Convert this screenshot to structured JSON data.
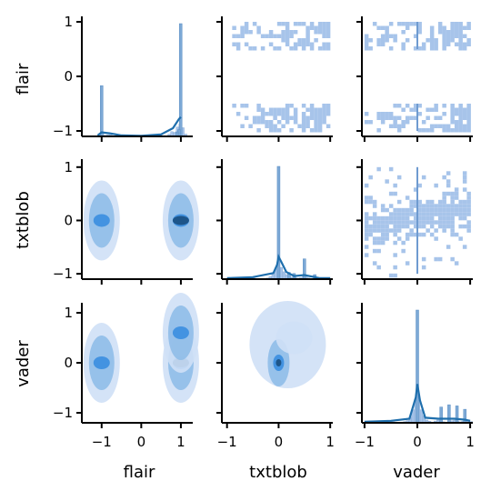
{
  "chart_data": {
    "type": "pairplot",
    "variables": [
      "flair",
      "txtblob",
      "vader"
    ],
    "axis_labels": {
      "x": [
        "flair",
        "txtblob",
        "vader"
      ],
      "y": [
        "flair",
        "txtblob",
        "vader"
      ]
    },
    "x_ticks": [
      {
        "values": [
          -1,
          0,
          1
        ],
        "labels": [
          "−1",
          "0",
          "1"
        ],
        "range": [
          -1.5,
          1.3
        ]
      },
      {
        "values": [
          -1,
          0,
          1
        ],
        "labels": [
          "−1",
          "0",
          "1"
        ],
        "range": [
          -1.1,
          1.05
        ]
      },
      {
        "values": [
          -1,
          0,
          1
        ],
        "labels": [
          "−1",
          "0",
          "1"
        ],
        "range": [
          -1.05,
          1.05
        ]
      }
    ],
    "y_ticks": [
      {
        "values": [
          -1,
          0,
          1
        ],
        "labels": [
          "−1",
          "0",
          "1"
        ],
        "range": [
          -1.1,
          1.1
        ]
      },
      {
        "values": [
          -1,
          0,
          1
        ],
        "labels": [
          "−1",
          "0",
          "1"
        ],
        "range": [
          -1.1,
          1.15
        ]
      },
      {
        "values": [
          -1,
          0,
          1
        ],
        "labels": [
          "−1",
          "0",
          "1"
        ],
        "range": [
          -1.2,
          1.2
        ]
      }
    ],
    "colors": {
      "hist_fill": "#a7c4ea",
      "kde_line": "#1f6fad",
      "kde_fill_light": "#cfe0f6",
      "kde_fill_mid": "#8fbde8",
      "kde_fill_dark": "#3a8ee0",
      "kde_core": "#1a4f80",
      "axis": "#000000",
      "background": "#ffffff"
    },
    "diagonal": [
      {
        "variable": "flair",
        "type": "hist+kde",
        "spikes": [
          {
            "x": -1.0,
            "height": 0.45
          },
          {
            "x": 0.995,
            "height": 1.0
          },
          {
            "x": 0.95,
            "height": 0.06
          },
          {
            "x": 0.9,
            "height": 0.04
          }
        ],
        "kde": [
          [
            -1.1,
            0.01
          ],
          [
            -1.0,
            0.04
          ],
          [
            -0.8,
            0.03
          ],
          [
            -0.5,
            0.01
          ],
          [
            0.0,
            0.005
          ],
          [
            0.5,
            0.02
          ],
          [
            0.8,
            0.08
          ],
          [
            0.95,
            0.17
          ],
          [
            1.0,
            0.19
          ]
        ]
      },
      {
        "variable": "txtblob",
        "type": "hist+kde",
        "spikes": [
          {
            "x": 0.0,
            "height": 1.0
          },
          {
            "x": 0.5,
            "height": 0.18
          },
          {
            "x": 0.2,
            "height": 0.06
          },
          {
            "x": 0.3,
            "height": 0.05
          },
          {
            "x": 0.7,
            "height": 0.04
          }
        ],
        "kde": [
          [
            -1.0,
            0.01
          ],
          [
            -0.5,
            0.02
          ],
          [
            -0.1,
            0.06
          ],
          [
            -0.03,
            0.14
          ],
          [
            0.0,
            0.22
          ],
          [
            0.05,
            0.17
          ],
          [
            0.15,
            0.07
          ],
          [
            0.3,
            0.03
          ],
          [
            0.5,
            0.04
          ],
          [
            0.8,
            0.01
          ],
          [
            1.0,
            0.01
          ]
        ]
      },
      {
        "variable": "vader",
        "type": "hist+kde",
        "spikes": [
          {
            "x": 0.0,
            "height": 1.0
          },
          {
            "x": 0.45,
            "height": 0.14
          },
          {
            "x": 0.6,
            "height": 0.16
          },
          {
            "x": 0.75,
            "height": 0.15
          },
          {
            "x": 0.9,
            "height": 0.12
          }
        ],
        "kde": [
          [
            -1.0,
            0.01
          ],
          [
            -0.5,
            0.02
          ],
          [
            -0.15,
            0.04
          ],
          [
            -0.03,
            0.25
          ],
          [
            0.0,
            0.38
          ],
          [
            0.05,
            0.22
          ],
          [
            0.15,
            0.05
          ],
          [
            0.4,
            0.04
          ],
          [
            0.7,
            0.04
          ],
          [
            0.9,
            0.03
          ],
          [
            1.0,
            0.02
          ]
        ]
      }
    ],
    "upper": [
      {
        "row": 0,
        "col": 1,
        "type": "hist2d",
        "description_bands_y": [
          [
            -1.0,
            -0.5
          ],
          [
            0.5,
            1.0
          ]
        ],
        "x_range": [
          -0.9,
          1.0
        ]
      },
      {
        "row": 0,
        "col": 2,
        "type": "hist2d",
        "description_bands_y": [
          [
            -1.0,
            -0.5
          ],
          [
            0.5,
            1.0
          ]
        ],
        "x_range": [
          -1.0,
          1.0
        ]
      },
      {
        "row": 1,
        "col": 2,
        "type": "hist2d",
        "x_range": [
          -1.0,
          1.0
        ],
        "y_range": [
          -1.0,
          1.0
        ]
      }
    ],
    "lower": [
      {
        "row": 1,
        "col": 0,
        "type": "kde2d",
        "clusters": [
          {
            "x": -1.0,
            "y": 0.0
          },
          {
            "x": 1.0,
            "y": 0.0
          }
        ]
      },
      {
        "row": 2,
        "col": 0,
        "type": "kde2d",
        "clusters": [
          {
            "x": -1.0,
            "y": 0.0
          },
          {
            "x": 1.0,
            "y": 0.0
          },
          {
            "x": 1.0,
            "y": 0.6
          }
        ]
      },
      {
        "row": 2,
        "col": 1,
        "type": "kde2d",
        "clusters": [
          {
            "x": 0.0,
            "y": 0.0
          },
          {
            "x": 0.3,
            "y": 0.5
          }
        ]
      }
    ]
  }
}
